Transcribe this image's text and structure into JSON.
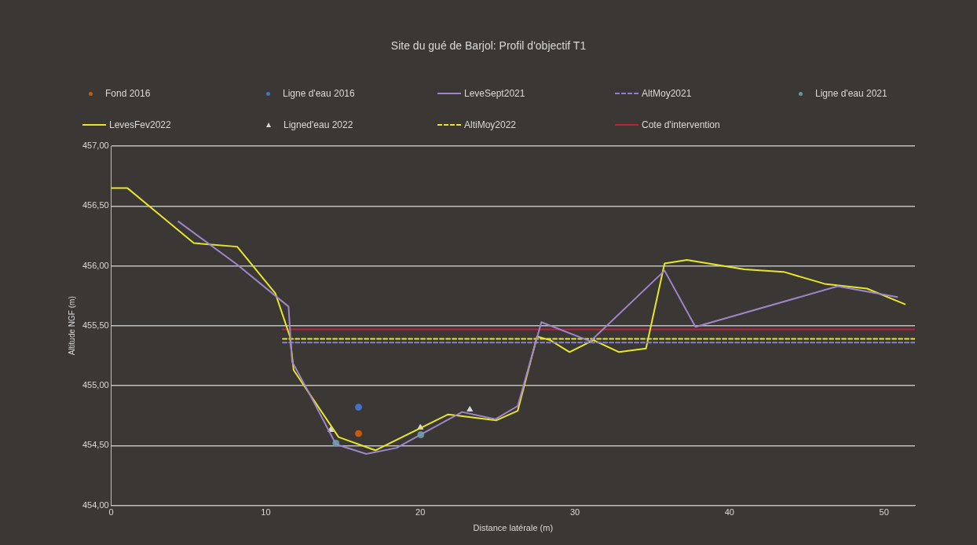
{
  "chart_data": {
    "type": "line",
    "title": "Site du gué de Barjol: Profil d'objectif T1",
    "xlabel": "Distance latérale (m)",
    "ylabel": "Altitude NGF (m)",
    "xlim": [
      0,
      52
    ],
    "xticks": [
      0,
      10,
      20,
      30,
      40,
      50
    ],
    "ylim": [
      454,
      457
    ],
    "yticks": [
      {
        "value": 454,
        "label": "454,00"
      },
      {
        "value": 454.5,
        "label": "454,50"
      },
      {
        "value": 455,
        "label": "455,00"
      },
      {
        "value": 455.5,
        "label": "455,50"
      },
      {
        "value": 456,
        "label": "456,00"
      },
      {
        "value": 456.5,
        "label": "456,50"
      },
      {
        "value": 457,
        "label": "457,00"
      }
    ],
    "grid": "y",
    "legend": "top",
    "series": [
      {
        "name": "Fond 2016",
        "type": "scatter",
        "marker": "circle",
        "color": "#c55a11",
        "x": [
          16.0
        ],
        "values": [
          454.6
        ]
      },
      {
        "name": "Ligne d'eau 2016",
        "type": "scatter",
        "marker": "circle",
        "color": "#4472c4",
        "x": [
          16.0
        ],
        "values": [
          454.82
        ]
      },
      {
        "name": "LeveSept2021",
        "type": "line",
        "marker": "none",
        "line_style": "solid",
        "color": "#9e86c9",
        "x": [
          4.35,
          8.15,
          11.47,
          11.7,
          12.67,
          14.54,
          16.5,
          18.46,
          20.0,
          22.7,
          24.85,
          26.3,
          27.83,
          31.0,
          35.8,
          37.8,
          47.0,
          50.85
        ],
        "values": [
          456.37,
          456.01,
          455.66,
          455.2,
          454.97,
          454.51,
          454.43,
          454.48,
          454.59,
          454.78,
          454.72,
          454.83,
          455.53,
          455.37,
          455.96,
          455.49,
          455.83,
          455.74
        ]
      },
      {
        "name": "AltMoy2021",
        "type": "line",
        "marker": "none",
        "line_style": "dashed",
        "color": "#8a7fd0",
        "x": [
          11.1,
          52
        ],
        "values": [
          455.36,
          455.36
        ]
      },
      {
        "name": "Ligne d'eau 2021",
        "type": "scatter",
        "marker": "circle",
        "color": "#5b9b9b",
        "x": [
          14.54,
          20.03
        ],
        "values": [
          454.52,
          454.59
        ]
      },
      {
        "name": "LevesFev2022",
        "type": "line",
        "marker": "none",
        "line_style": "solid",
        "color": "#e6e62a",
        "x": [
          0,
          1.04,
          5.34,
          8.15,
          10.62,
          11.56,
          11.8,
          14.71,
          17.1,
          21.8,
          24.9,
          26.3,
          27.55,
          28.4,
          29.65,
          31.2,
          32.85,
          34.6,
          35.8,
          37.25,
          40.97,
          43.5,
          46.15,
          48.9,
          51.35
        ],
        "values": [
          456.65,
          456.65,
          456.19,
          456.16,
          455.77,
          455.41,
          455.13,
          454.57,
          454.46,
          454.76,
          454.71,
          454.79,
          455.41,
          455.38,
          455.28,
          455.38,
          455.28,
          455.31,
          456.02,
          456.05,
          455.97,
          455.95,
          455.85,
          455.81,
          455.68
        ]
      },
      {
        "name": "Ligned'eau 2022",
        "type": "scatter",
        "marker": "triangle",
        "color": "#d9d9d9",
        "x": [
          14.2,
          20.0,
          23.2
        ],
        "values": [
          454.63,
          454.65,
          454.8
        ]
      },
      {
        "name": "AltiMoy2022",
        "type": "line",
        "marker": "none",
        "line_style": "dashed",
        "color": "#e6e62a",
        "x": [
          11.1,
          52
        ],
        "values": [
          455.39,
          455.39
        ]
      },
      {
        "name": "Cote d'intervention",
        "type": "line",
        "marker": "none",
        "line_style": "solid",
        "color": "#c0203c",
        "x": [
          11.1,
          52
        ],
        "values": [
          455.47,
          455.47
        ]
      }
    ]
  }
}
